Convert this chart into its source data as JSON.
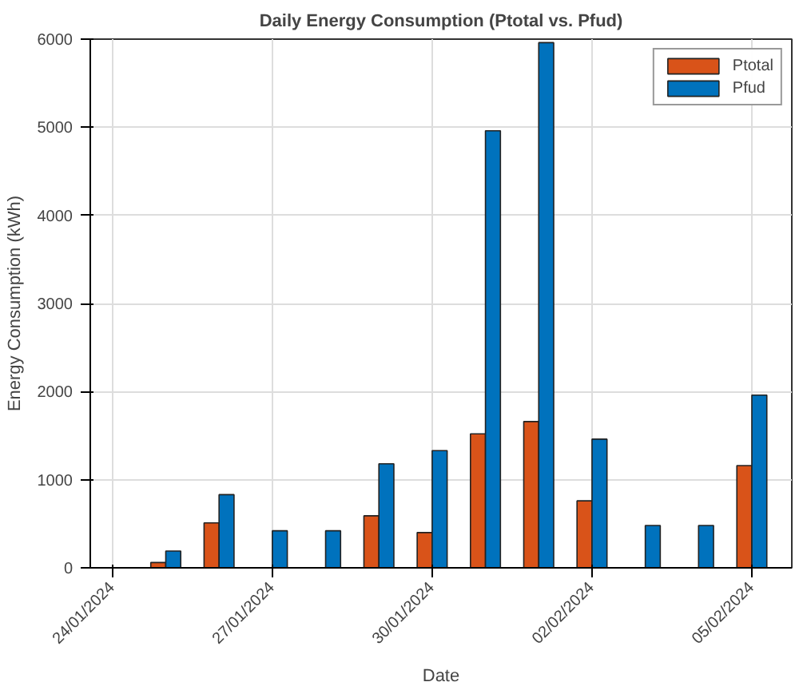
{
  "chart_data": {
    "type": "bar",
    "title": "Daily Energy Consumption (Ptotal vs. Pfud)",
    "xlabel": "Date",
    "ylabel": "Energy Consumption (kWh)",
    "x": [
      "2024-01-25",
      "2024-01-26",
      "2024-01-27",
      "2024-01-28",
      "2024-01-29",
      "2024-01-30",
      "2024-01-31",
      "2024-02-01",
      "2024-02-02",
      "2024-02-03",
      "2024-02-04",
      "2024-02-05"
    ],
    "series": [
      {
        "name": "Ptotal",
        "color": "#d95319",
        "values": [
          60,
          510,
          null,
          null,
          590,
          400,
          1520,
          1660,
          760,
          null,
          null,
          1160
        ]
      },
      {
        "name": "Pfud",
        "color": "#0072bd",
        "values": [
          190,
          830,
          420,
          420,
          1180,
          1330,
          4960,
          5960,
          1460,
          480,
          480,
          1960
        ]
      }
    ],
    "xlim": [
      "2024-01-23T14:00",
      "2024-02-05T18:00"
    ],
    "xticks": [
      {
        "value": "2024-01-24",
        "label": "24/01/2024"
      },
      {
        "value": "2024-01-27",
        "label": "27/01/2024"
      },
      {
        "value": "2024-01-30",
        "label": "30/01/2024"
      },
      {
        "value": "2024-02-02",
        "label": "02/02/2024"
      },
      {
        "value": "2024-02-05",
        "label": "05/02/2024"
      }
    ],
    "ylim": [
      0,
      6000
    ],
    "yticks": [
      0,
      1000,
      2000,
      3000,
      4000,
      5000,
      6000
    ],
    "grid": true,
    "legend": "top right"
  }
}
